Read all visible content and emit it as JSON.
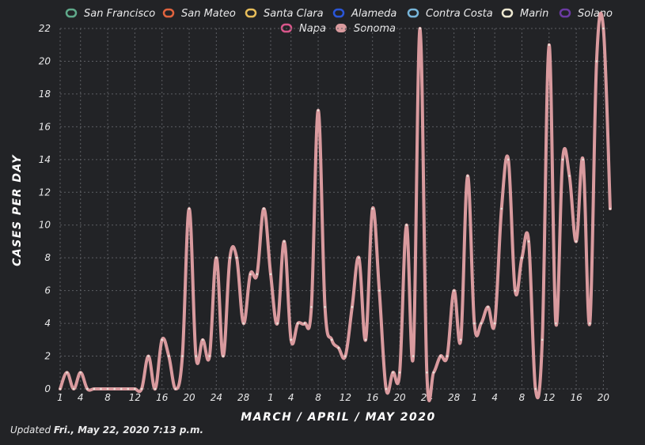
{
  "colors": {
    "background": "#222326",
    "grid": "#5c5e63",
    "text": "#e9e9ea",
    "sonoma_line": "#d99a9e",
    "point": "#e8e0d8"
  },
  "footer": {
    "prefix": "Updated",
    "timestamp": "Fri., May 22, 2020 7:13 p.m."
  },
  "chart_data": {
    "type": "line",
    "xlabel": "MARCH / APRIL / MAY 2020",
    "ylabel": "CASES PER DAY",
    "ylim": [
      0,
      22
    ],
    "y_ticks": [
      0,
      2,
      4,
      6,
      8,
      10,
      12,
      14,
      16,
      18,
      20,
      22
    ],
    "grid": true,
    "legend_placement": "top",
    "legend": [
      {
        "name": "San Francisco",
        "color": "#5fa98a",
        "active": false
      },
      {
        "name": "San Mateo",
        "color": "#e0633e",
        "active": false
      },
      {
        "name": "Santa Clara",
        "color": "#e7bd5a",
        "active": false
      },
      {
        "name": "Alameda",
        "color": "#2a56d8",
        "active": false
      },
      {
        "name": "Contra Costa",
        "color": "#77b5d9",
        "active": false
      },
      {
        "name": "Marin",
        "color": "#ece7d0",
        "active": false
      },
      {
        "name": "Solano",
        "color": "#6b3aa2",
        "active": false
      },
      {
        "name": "Napa",
        "color": "#d8568a",
        "active": false
      },
      {
        "name": "Sonoma",
        "color": "#d99a9e",
        "active": true
      }
    ],
    "x_tick_labels": [
      "1",
      "4",
      "8",
      "12",
      "16",
      "20",
      "24",
      "28",
      "1",
      "4",
      "8",
      "12",
      "16",
      "20",
      "24",
      "28",
      "1",
      "4",
      "8",
      "12",
      "16",
      "20"
    ],
    "x_tick_dates": [
      "2020-03-01",
      "2020-03-04",
      "2020-03-08",
      "2020-03-12",
      "2020-03-16",
      "2020-03-20",
      "2020-03-24",
      "2020-03-28",
      "2020-04-01",
      "2020-04-04",
      "2020-04-08",
      "2020-04-12",
      "2020-04-16",
      "2020-04-20",
      "2020-04-24",
      "2020-04-28",
      "2020-05-01",
      "2020-05-04",
      "2020-05-08",
      "2020-05-12",
      "2020-05-16",
      "2020-05-20"
    ],
    "x_start": "2020-03-01",
    "x_end": "2020-05-21",
    "series": [
      {
        "name": "Sonoma",
        "values": [
          0,
          1,
          0,
          1,
          0,
          0,
          0,
          0,
          0,
          0,
          0,
          0,
          0,
          2,
          0,
          3,
          2,
          0,
          2,
          11,
          2,
          3,
          2,
          8,
          2,
          8,
          8,
          4,
          7,
          7,
          11,
          7,
          4,
          9,
          3,
          4,
          4,
          5,
          17,
          5,
          3,
          2.5,
          2,
          5,
          8,
          3,
          11,
          6,
          0,
          1,
          1,
          10,
          2,
          22,
          1,
          1,
          2,
          2,
          6,
          3,
          13,
          4,
          4,
          5,
          4,
          11,
          14,
          6,
          8,
          9,
          0,
          3,
          21,
          4,
          14,
          13,
          9,
          14,
          4,
          20,
          22,
          11
        ]
      }
    ]
  }
}
